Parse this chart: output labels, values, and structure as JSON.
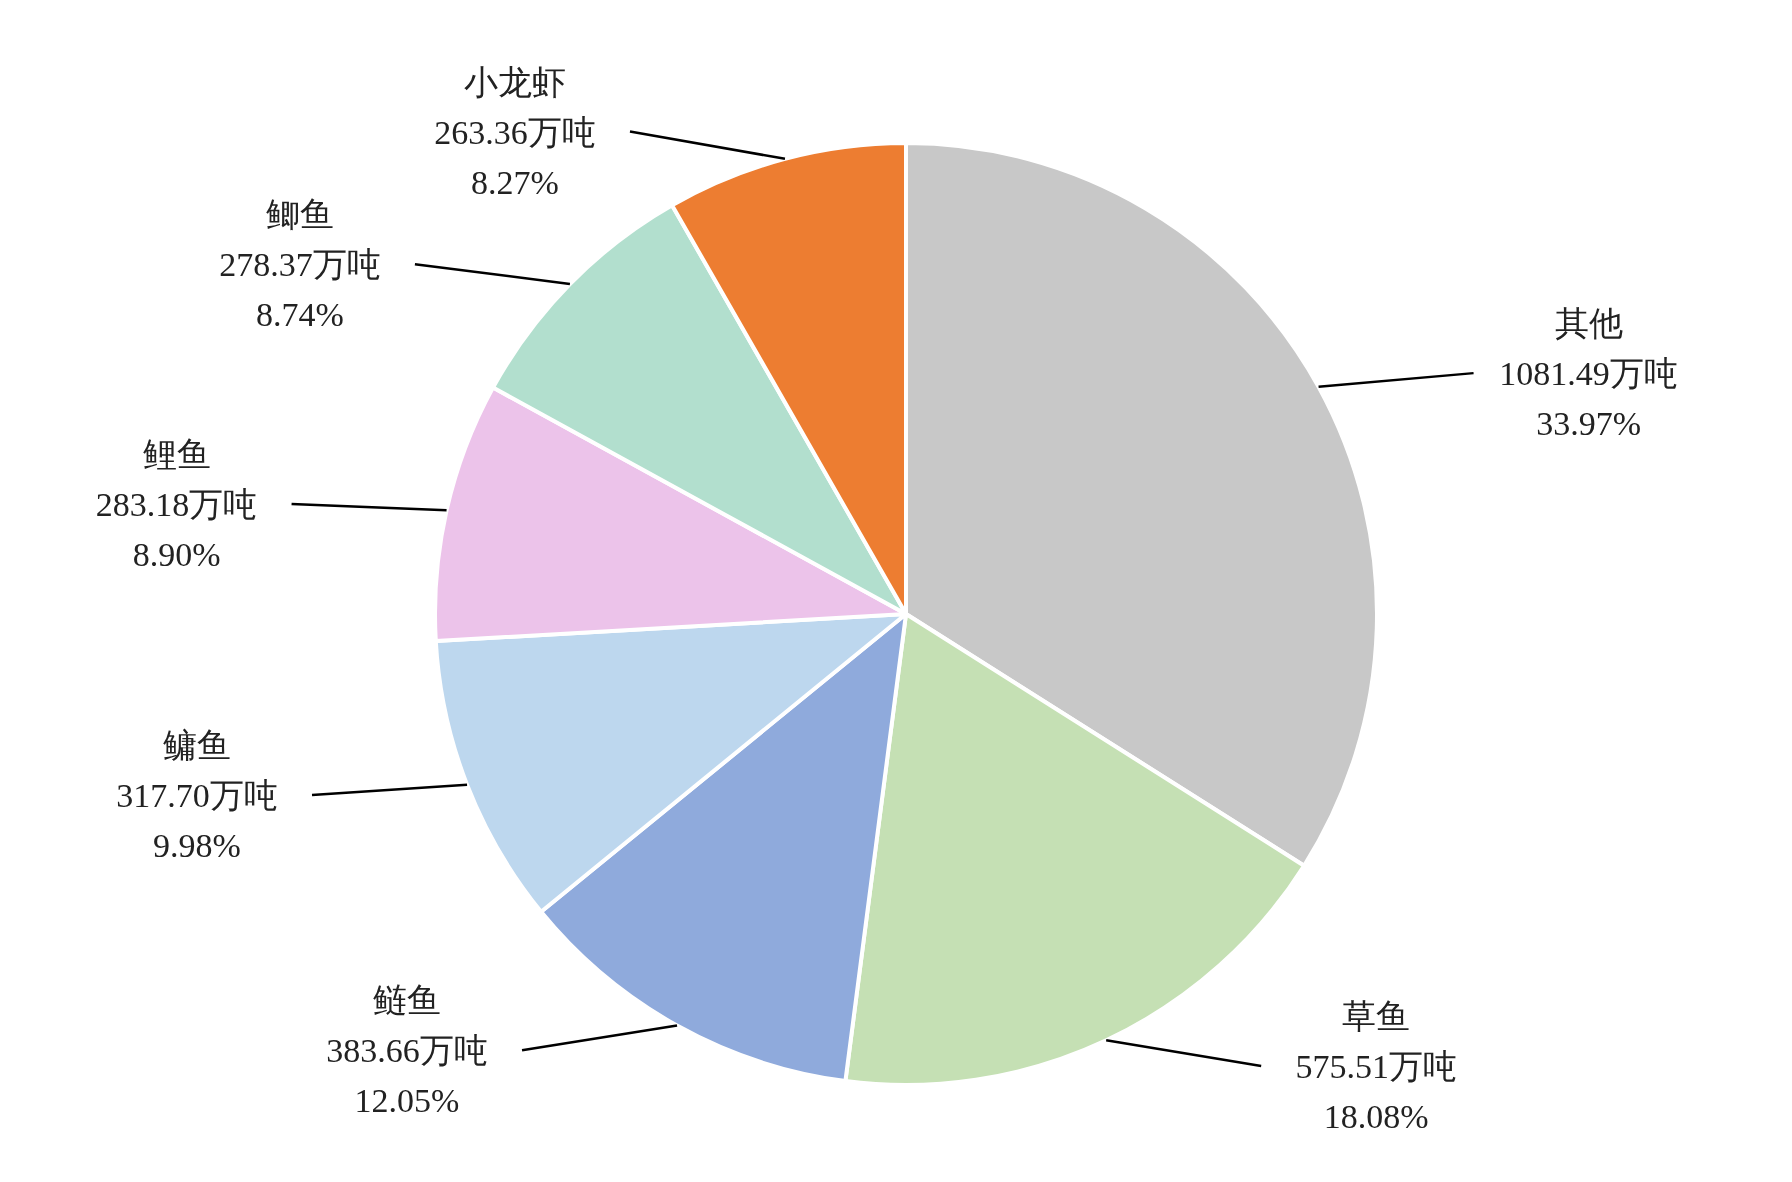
{
  "chart_data": {
    "type": "pie",
    "categories": [
      "其他",
      "草鱼",
      "鲢鱼",
      "鳙鱼",
      "鲤鱼",
      "鲫鱼",
      "小龙虾"
    ],
    "values": [
      1081.49,
      575.51,
      383.66,
      317.7,
      283.18,
      278.37,
      263.36
    ],
    "colors": [
      "#c8c8c8",
      "#c5e0b4",
      "#8faadc",
      "#bdd7ee",
      "#ecc3ea",
      "#b2dfce",
      "#ed7d31"
    ],
    "value_labels": [
      "1081.49万吨 33.97%",
      "575.51万吨 18.08%",
      "383.66万吨 12.05%",
      "317.70万吨 9.98%",
      "283.18万吨 8.90%",
      "278.37万吨 8.74%",
      "263.36万吨 8.27%"
    ]
  }
}
